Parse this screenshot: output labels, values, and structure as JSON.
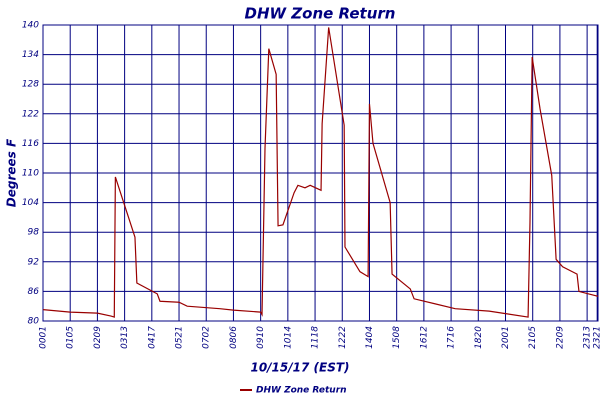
{
  "chart_data": {
    "type": "line",
    "title": "DHW Zone Return",
    "y_label": "Degrees F",
    "x_label": "10/15/17 (EST)",
    "x": [
      0,
      1,
      2,
      2.5,
      2.62,
      2.66,
      3.38,
      3.45,
      4.2,
      4.3,
      5,
      5.3,
      6.5,
      7,
      8,
      8.05,
      8.16,
      8.3,
      8.57,
      8.64,
      8.82,
      9.23,
      9.37,
      9.63,
      9.82,
      10.22,
      10.26,
      10.5,
      11.07,
      11.1,
      11.65,
      11.95,
      12,
      12.13,
      12.76,
      12.83,
      13.5,
      13.64,
      14.4,
      15.15,
      16.4,
      17,
      17.83,
      17.9,
      17.98,
      18.27,
      18.7,
      18.86,
      19.1,
      19.63,
      19.7,
      20.4
    ],
    "series": [
      {
        "name": "DHW Zone Return",
        "color": "#990000",
        "values": [
          82.3,
          81.8,
          81.6,
          81,
          80.8,
          109.2,
          97,
          87.7,
          85.5,
          84,
          83.8,
          83,
          82.5,
          82.2,
          81.8,
          81.3,
          115,
          135.2,
          130,
          99.3,
          99.5,
          106,
          107.5,
          107,
          107.5,
          106.5,
          120,
          139.5,
          119.7,
          95,
          90,
          89,
          124,
          116,
          104,
          89.5,
          86.5,
          84.5,
          83.5,
          82.5,
          82,
          81.5,
          80.8,
          100,
          133.5,
          123,
          109.5,
          92.5,
          91,
          89.5,
          86,
          85
        ]
      }
    ],
    "xlim": [
      0,
      20.4
    ],
    "ylim": [
      80,
      140
    ],
    "xticks": [
      {
        "value": 0,
        "label": "0001"
      },
      {
        "value": 1,
        "label": "0105"
      },
      {
        "value": 2,
        "label": "0209"
      },
      {
        "value": 3,
        "label": "0313"
      },
      {
        "value": 4,
        "label": "0417"
      },
      {
        "value": 5,
        "label": "0521"
      },
      {
        "value": 6,
        "label": "0702"
      },
      {
        "value": 7,
        "label": "0806"
      },
      {
        "value": 8,
        "label": "0910"
      },
      {
        "value": 9,
        "label": "1014"
      },
      {
        "value": 10,
        "label": "1118"
      },
      {
        "value": 11,
        "label": "1222"
      },
      {
        "value": 12,
        "label": "1404"
      },
      {
        "value": 13,
        "label": "1508"
      },
      {
        "value": 14,
        "label": "1612"
      },
      {
        "value": 15,
        "label": "1716"
      },
      {
        "value": 16,
        "label": "1820"
      },
      {
        "value": 17,
        "label": "2001"
      },
      {
        "value": 18,
        "label": "2105"
      },
      {
        "value": 19,
        "label": "2209"
      },
      {
        "value": 20,
        "label": "2313"
      },
      {
        "value": 20.37,
        "label": "2321"
      }
    ],
    "yticks": [
      80,
      86,
      92,
      98,
      104,
      110,
      116,
      122,
      128,
      134,
      140
    ],
    "grid": true
  }
}
